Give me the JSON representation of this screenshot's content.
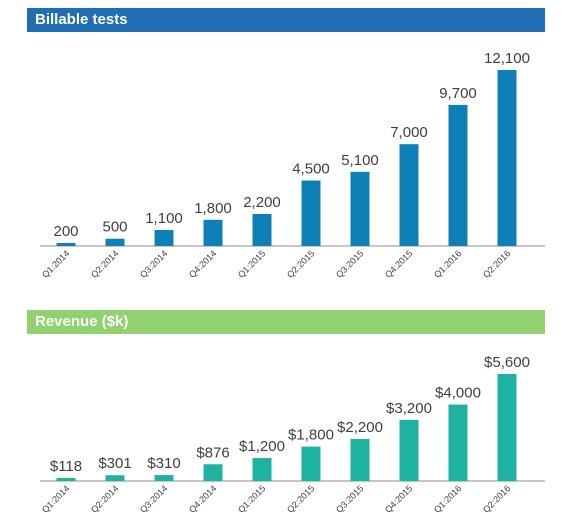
{
  "colors": {
    "banner1": "#1f6eb4",
    "banner2": "#92d16f",
    "bars1": "#0e80b7",
    "bars2": "#1db3a0",
    "axis": "#8c8c8c"
  },
  "chart_data": [
    {
      "type": "bar",
      "title": "Billable tests",
      "categories": [
        "Q1:2014",
        "Q2:2014",
        "Q3:2014",
        "Q4:2014",
        "Q1:2015",
        "Q2:2015",
        "Q3:2015",
        "Q4:2015",
        "Q1:2016",
        "Q2:2016"
      ],
      "values": [
        200,
        500,
        1100,
        1800,
        2200,
        4500,
        5100,
        7000,
        9700,
        12100
      ],
      "labels": [
        "200",
        "500",
        "1,100",
        "1,800",
        "2,200",
        "4,500",
        "5,100",
        "7,000",
        "9,700",
        "12,100"
      ],
      "ylim": [
        0,
        12100
      ],
      "grid": false,
      "legend": "none"
    },
    {
      "type": "bar",
      "title": "Revenue ($k)",
      "categories": [
        "Q1:2014",
        "Q2:2014",
        "Q3:2014",
        "Q4:2014",
        "Q1:2015",
        "Q2:2015",
        "Q3:2015",
        "Q4:2015",
        "Q1:2016",
        "Q2:2016"
      ],
      "values": [
        118,
        301,
        310,
        876,
        1200,
        1800,
        2200,
        3200,
        4000,
        5600
      ],
      "labels": [
        "$118",
        "$301",
        "$310",
        "$876",
        "$1,200",
        "$1,800",
        "$2,200",
        "$3,200",
        "$4,000",
        "$5,600"
      ],
      "ylim": [
        0,
        5600
      ],
      "grid": false,
      "legend": "none"
    }
  ]
}
